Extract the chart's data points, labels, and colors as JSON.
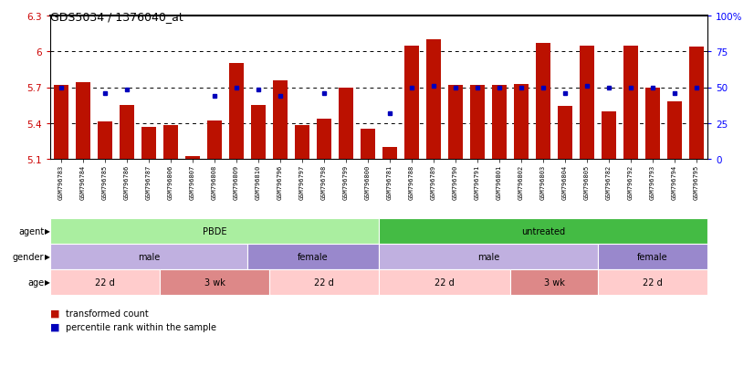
{
  "title": "GDS5034 / 1376040_at",
  "samples": [
    "GSM796783",
    "GSM796784",
    "GSM796785",
    "GSM796786",
    "GSM796787",
    "GSM796806",
    "GSM796807",
    "GSM796808",
    "GSM796809",
    "GSM796810",
    "GSM796796",
    "GSM796797",
    "GSM796798",
    "GSM796799",
    "GSM796800",
    "GSM796781",
    "GSM796788",
    "GSM796789",
    "GSM796790",
    "GSM796791",
    "GSM796801",
    "GSM796802",
    "GSM796803",
    "GSM796804",
    "GSM796805",
    "GSM796782",
    "GSM796792",
    "GSM796793",
    "GSM796794",
    "GSM796795"
  ],
  "bar_values": [
    5.72,
    5.74,
    5.41,
    5.55,
    5.37,
    5.38,
    5.12,
    5.42,
    5.9,
    5.55,
    5.76,
    5.38,
    5.44,
    5.7,
    5.35,
    5.2,
    6.05,
    6.1,
    5.72,
    5.72,
    5.72,
    5.73,
    6.07,
    5.54,
    6.05,
    5.5,
    6.05,
    5.7,
    5.58,
    6.04
  ],
  "blue_dot_values": [
    5.7,
    null,
    5.648,
    5.682,
    null,
    null,
    null,
    5.63,
    5.7,
    5.68,
    5.63,
    null,
    5.648,
    null,
    null,
    5.48,
    5.7,
    5.71,
    5.7,
    5.7,
    5.7,
    5.7,
    5.7,
    5.65,
    5.71,
    5.7,
    5.7,
    5.7,
    5.65,
    5.7
  ],
  "ylim_left": [
    5.1,
    6.3
  ],
  "ylim_right": [
    0,
    100
  ],
  "yticks_left": [
    5.1,
    5.4,
    5.7,
    6.0,
    6.3
  ],
  "ytick_labels_left": [
    "5.1",
    "5.4",
    "5.7",
    "6",
    "6.3"
  ],
  "yticks_right": [
    0,
    25,
    50,
    75,
    100
  ],
  "ytick_labels_right": [
    "0",
    "25",
    "50",
    "75",
    "100%"
  ],
  "bar_color": "#BB1100",
  "dot_color": "#0000BB",
  "agent_groups": [
    {
      "label": "PBDE",
      "start": 0,
      "end": 15,
      "color": "#AAEEA0"
    },
    {
      "label": "untreated",
      "start": 15,
      "end": 30,
      "color": "#44BB44"
    }
  ],
  "gender_groups": [
    {
      "label": "male",
      "start": 0,
      "end": 9,
      "color": "#C0B0E0"
    },
    {
      "label": "female",
      "start": 9,
      "end": 15,
      "color": "#9988CC"
    },
    {
      "label": "male",
      "start": 15,
      "end": 25,
      "color": "#C0B0E0"
    },
    {
      "label": "female",
      "start": 25,
      "end": 30,
      "color": "#9988CC"
    }
  ],
  "age_groups": [
    {
      "label": "22 d",
      "start": 0,
      "end": 5,
      "color": "#FFCCCC"
    },
    {
      "label": "3 wk",
      "start": 5,
      "end": 10,
      "color": "#DD8888"
    },
    {
      "label": "22 d",
      "start": 10,
      "end": 15,
      "color": "#FFCCCC"
    },
    {
      "label": "22 d",
      "start": 15,
      "end": 21,
      "color": "#FFCCCC"
    },
    {
      "label": "3 wk",
      "start": 21,
      "end": 25,
      "color": "#DD8888"
    },
    {
      "label": "22 d",
      "start": 25,
      "end": 30,
      "color": "#FFCCCC"
    }
  ],
  "legend_items": [
    {
      "label": "transformed count",
      "color": "#BB1100"
    },
    {
      "label": "percentile rank within the sample",
      "color": "#0000BB"
    }
  ]
}
